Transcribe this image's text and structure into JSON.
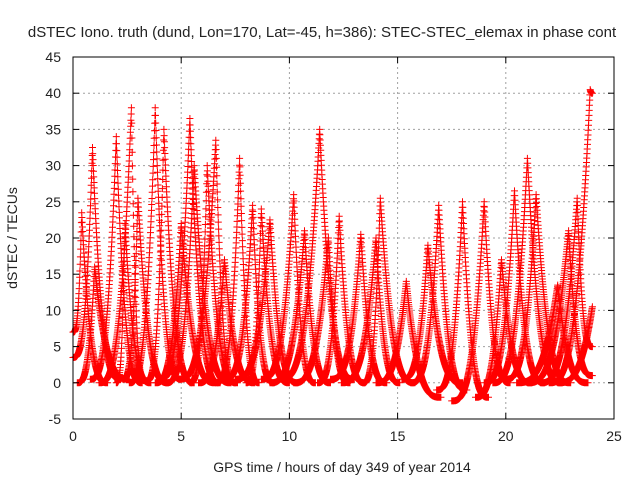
{
  "chart_data": {
    "type": "scatter",
    "title": "dSTEC Iono. truth (dund, Lon=170, Lat=-45, h=386): STEC-STEC_elemax in phase cont",
    "xlabel": "GPS time / hours of day 349 of year 2014",
    "ylabel": "dSTEC  / TECUs",
    "xlim": [
      0,
      25
    ],
    "ylim": [
      -5,
      45
    ],
    "xticks": [
      "0",
      "5",
      "10",
      "15",
      "20",
      "25"
    ],
    "yticks": [
      "-5",
      "0",
      "5",
      "10",
      "15",
      "20",
      "25",
      "30",
      "35",
      "40",
      "45"
    ],
    "grid": true,
    "marker": "+",
    "colors": {
      "series": "#ff0000",
      "grid": "#a0a0a0",
      "axes": "#000000"
    },
    "arcs": [
      {
        "t0": 0.0,
        "peak": 0.9,
        "t1": 2.2,
        "ypeak": 32.5,
        "y0": 3.5,
        "y1": 0.5
      },
      {
        "t0": 0.0,
        "peak": 0.4,
        "t1": 1.6,
        "ypeak": 23.5,
        "y0": 7.0,
        "y1": 0.0
      },
      {
        "t0": 0.2,
        "peak": 1.0,
        "t1": 2.6,
        "ypeak": 16.0,
        "y0": 0.0,
        "y1": 0.5
      },
      {
        "t0": 0.8,
        "peak": 2.0,
        "t1": 3.2,
        "ypeak": 34.0,
        "y0": 0.5,
        "y1": 0.0
      },
      {
        "t0": 1.2,
        "peak": 2.7,
        "t1": 3.3,
        "ypeak": 38.0,
        "y0": 0.0,
        "y1": 0.3
      },
      {
        "t0": 2.0,
        "peak": 2.4,
        "t1": 3.6,
        "ypeak": 22.0,
        "y0": 0.0,
        "y1": 0.0
      },
      {
        "t0": 2.3,
        "peak": 3.0,
        "t1": 4.4,
        "ypeak": 25.5,
        "y0": 0.5,
        "y1": 0.0
      },
      {
        "t0": 2.6,
        "peak": 3.8,
        "t1": 5.0,
        "ypeak": 38.0,
        "y0": 0.0,
        "y1": 0.5
      },
      {
        "t0": 3.4,
        "peak": 4.2,
        "t1": 5.6,
        "ypeak": 35.0,
        "y0": 0.3,
        "y1": 0.0
      },
      {
        "t0": 3.8,
        "peak": 5.0,
        "t1": 6.6,
        "ypeak": 22.0,
        "y0": 0.0,
        "y1": 0.0
      },
      {
        "t0": 4.0,
        "peak": 5.4,
        "t1": 6.8,
        "ypeak": 36.5,
        "y0": 0.5,
        "y1": 0.0
      },
      {
        "t0": 4.3,
        "peak": 5.6,
        "t1": 7.3,
        "ypeak": 30.0,
        "y0": 0.0,
        "y1": 0.0
      },
      {
        "t0": 4.9,
        "peak": 6.6,
        "t1": 7.5,
        "ypeak": 33.5,
        "y0": 0.5,
        "y1": 0.0
      },
      {
        "t0": 5.4,
        "peak": 6.2,
        "t1": 7.6,
        "ypeak": 30.0,
        "y0": 0.0,
        "y1": 0.0
      },
      {
        "t0": 5.8,
        "peak": 7.0,
        "t1": 8.4,
        "ypeak": 17.0,
        "y0": 0.0,
        "y1": 0.0
      },
      {
        "t0": 6.6,
        "peak": 7.7,
        "t1": 8.6,
        "ypeak": 31.0,
        "y0": 0.0,
        "y1": 0.0
      },
      {
        "t0": 7.0,
        "peak": 8.3,
        "t1": 9.3,
        "ypeak": 24.5,
        "y0": 0.5,
        "y1": 0.0
      },
      {
        "t0": 7.5,
        "peak": 9.1,
        "t1": 10.4,
        "ypeak": 22.5,
        "y0": 0.5,
        "y1": 0.0
      },
      {
        "t0": 8.0,
        "peak": 8.7,
        "t1": 10.0,
        "ypeak": 24.0,
        "y0": 0.0,
        "y1": 0.0
      },
      {
        "t0": 8.7,
        "peak": 10.2,
        "t1": 11.2,
        "ypeak": 26.0,
        "y0": 0.5,
        "y1": 0.0
      },
      {
        "t0": 9.1,
        "peak": 10.7,
        "t1": 11.9,
        "ypeak": 21.0,
        "y0": 0.0,
        "y1": 0.0
      },
      {
        "t0": 9.6,
        "peak": 11.4,
        "t1": 13.0,
        "ypeak": 35.0,
        "y0": 0.5,
        "y1": 0.5
      },
      {
        "t0": 10.2,
        "peak": 11.8,
        "t1": 12.8,
        "ypeak": 20.0,
        "y0": 0.0,
        "y1": 0.0
      },
      {
        "t0": 11.3,
        "peak": 12.3,
        "t1": 13.5,
        "ypeak": 23.0,
        "y0": 0.0,
        "y1": 0.0
      },
      {
        "t0": 11.9,
        "peak": 13.3,
        "t1": 14.5,
        "ypeak": 20.5,
        "y0": 0.5,
        "y1": 0.0
      },
      {
        "t0": 12.4,
        "peak": 14.0,
        "t1": 15.1,
        "ypeak": 20.0,
        "y0": 0.0,
        "y1": 0.0
      },
      {
        "t0": 13.4,
        "peak": 14.2,
        "t1": 15.8,
        "ypeak": 25.5,
        "y0": 0.0,
        "y1": 0.0
      },
      {
        "t0": 14.0,
        "peak": 15.4,
        "t1": 17.0,
        "ypeak": 14.0,
        "y0": 0.0,
        "y1": -2.0
      },
      {
        "t0": 15.2,
        "peak": 16.4,
        "t1": 18.0,
        "ypeak": 19.0,
        "y0": 0.5,
        "y1": 0.0
      },
      {
        "t0": 15.6,
        "peak": 16.9,
        "t1": 18.2,
        "ypeak": 24.5,
        "y0": 0.0,
        "y1": -1.0
      },
      {
        "t0": 16.8,
        "peak": 18.0,
        "t1": 19.2,
        "ypeak": 25.0,
        "y0": -1.0,
        "y1": -2.0
      },
      {
        "t0": 17.5,
        "peak": 19.0,
        "t1": 20.2,
        "ypeak": 25.0,
        "y0": -2.5,
        "y1": 0.0
      },
      {
        "t0": 18.6,
        "peak": 19.8,
        "t1": 21.2,
        "ypeak": 17.0,
        "y0": -2.0,
        "y1": 0.0
      },
      {
        "t0": 19.0,
        "peak": 20.4,
        "t1": 21.8,
        "ypeak": 26.5,
        "y0": 0.0,
        "y1": 0.0
      },
      {
        "t0": 19.4,
        "peak": 21.0,
        "t1": 22.6,
        "ypeak": 31.0,
        "y0": 0.0,
        "y1": 0.0
      },
      {
        "t0": 20.0,
        "peak": 21.4,
        "t1": 23.0,
        "ypeak": 26.0,
        "y0": 0.5,
        "y1": 0.0
      },
      {
        "t0": 20.5,
        "peak": 22.4,
        "t1": 23.8,
        "ypeak": 13.5,
        "y0": 0.0,
        "y1": 0.0
      },
      {
        "t0": 21.0,
        "peak": 22.9,
        "t1": 24.0,
        "ypeak": 21.0,
        "y0": 0.0,
        "y1": 1.0
      },
      {
        "t0": 21.6,
        "peak": 23.3,
        "t1": 24.0,
        "ypeak": 25.5,
        "y0": 0.0,
        "y1": 5.0
      },
      {
        "t0": 22.0,
        "peak": 23.9,
        "t1": 24.0,
        "ypeak": 40.5,
        "y0": 0.0,
        "y1": 40.0
      },
      {
        "t0": 22.4,
        "peak": 24.0,
        "t1": 24.0,
        "ypeak": 10.5,
        "y0": 0.0,
        "y1": 10.5
      }
    ]
  }
}
